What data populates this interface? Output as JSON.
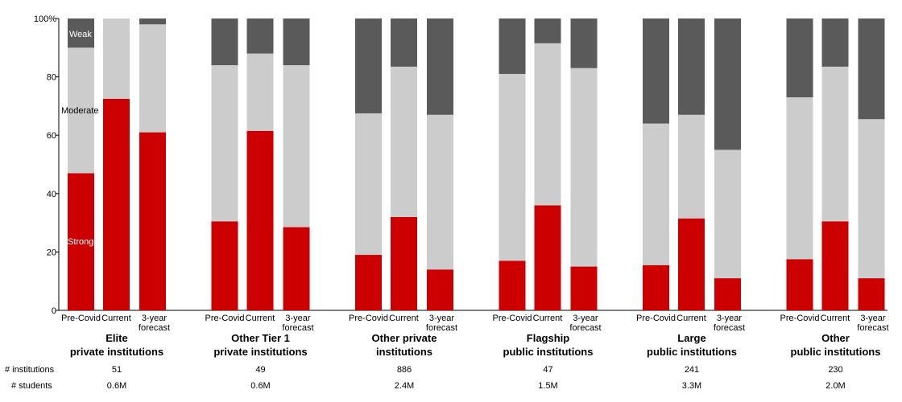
{
  "chart_data": {
    "type": "bar",
    "stacked": true,
    "ylim": [
      0,
      100
    ],
    "yticks": [
      "0",
      "20",
      "40",
      "60",
      "80",
      "100%"
    ],
    "grid": false,
    "colors": {
      "Strong": "#cc0000",
      "Moderate": "#cccccc",
      "Weak": "#5a5a5a"
    },
    "inline_labels": {
      "weak": "Weak",
      "moderate": "Moderate",
      "strong": "Strong"
    },
    "bar_labels": [
      "Pre-Covid",
      "Current",
      "3-year forecast"
    ],
    "groups": [
      {
        "line1": "Elite",
        "line2": "private institutions",
        "institutions": "51",
        "students": "0.6M",
        "bars": [
          {
            "strong": 47,
            "moderate": 43,
            "weak": 10
          },
          {
            "strong": 72.5,
            "moderate": 27.5,
            "weak": 0
          },
          {
            "strong": 61,
            "moderate": 37,
            "weak": 2
          }
        ]
      },
      {
        "line1": "Other Tier 1",
        "line2": "private institutions",
        "institutions": "49",
        "students": "0.6M",
        "bars": [
          {
            "strong": 30.5,
            "moderate": 53.5,
            "weak": 16
          },
          {
            "strong": 61.5,
            "moderate": 26.5,
            "weak": 12
          },
          {
            "strong": 28.5,
            "moderate": 55.5,
            "weak": 16
          }
        ]
      },
      {
        "line1": "Other private",
        "line2": "institutions",
        "institutions": "886",
        "students": "2.4M",
        "bars": [
          {
            "strong": 19,
            "moderate": 48.5,
            "weak": 32.5
          },
          {
            "strong": 32,
            "moderate": 51.5,
            "weak": 16.5
          },
          {
            "strong": 14,
            "moderate": 53,
            "weak": 33
          }
        ]
      },
      {
        "line1": "Flagship",
        "line2": "public institutions",
        "institutions": "47",
        "students": "1.5M",
        "bars": [
          {
            "strong": 17,
            "moderate": 64,
            "weak": 19
          },
          {
            "strong": 36,
            "moderate": 55.5,
            "weak": 8.5
          },
          {
            "strong": 15,
            "moderate": 68,
            "weak": 17
          }
        ]
      },
      {
        "line1": "Large",
        "line2": "public institutions",
        "institutions": "241",
        "students": "3.3M",
        "bars": [
          {
            "strong": 15.5,
            "moderate": 48.5,
            "weak": 36
          },
          {
            "strong": 31.5,
            "moderate": 35.5,
            "weak": 33
          },
          {
            "strong": 11,
            "moderate": 44,
            "weak": 45
          }
        ]
      },
      {
        "line1": "Other",
        "line2": "public institutions",
        "institutions": "230",
        "students": "2.0M",
        "bars": [
          {
            "strong": 17.5,
            "moderate": 55.5,
            "weak": 27
          },
          {
            "strong": 30.5,
            "moderate": 53,
            "weak": 16.5
          },
          {
            "strong": 11,
            "moderate": 54.5,
            "weak": 34.5
          }
        ]
      }
    ]
  },
  "footer": {
    "institutions_label": "# institutions",
    "students_label": "# students"
  }
}
